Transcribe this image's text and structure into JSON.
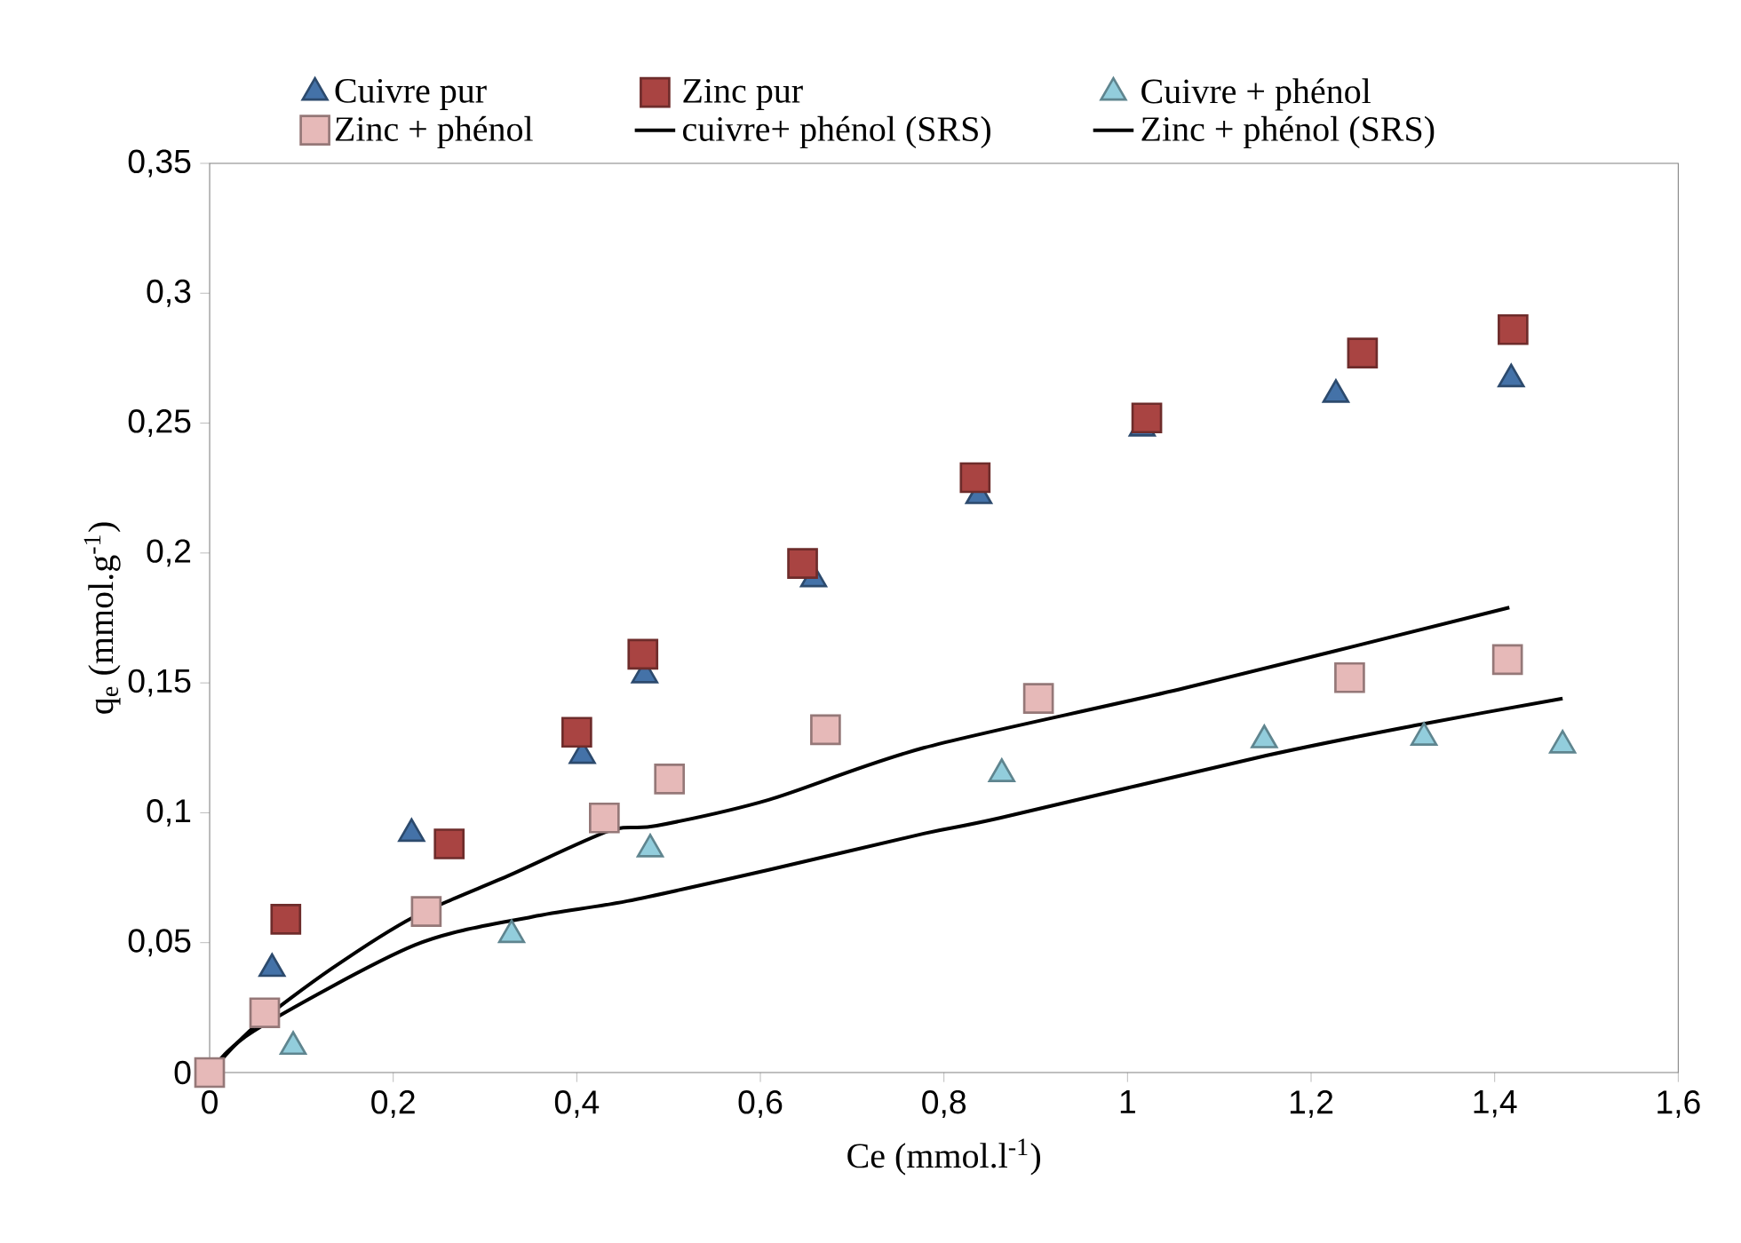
{
  "chart_data": {
    "type": "scatter",
    "xlabel": "Ce (mmol.l$^{-1}$)",
    "ylabel": "q$_{e}$ (mmol.g$^{-1}$)",
    "xlim": [
      0,
      1.6
    ],
    "ylim": [
      0,
      0.35
    ],
    "xticks": [
      0,
      {
        "value": 0.2,
        "label": "0,2"
      },
      {
        "value": 0.4,
        "label": "0,4"
      },
      {
        "value": 0.6,
        "label": "0,6"
      },
      {
        "value": 0.8,
        "label": "0,8"
      },
      1,
      {
        "value": 1.2,
        "label": "1,2"
      },
      {
        "value": 1.4,
        "label": "1,4"
      },
      {
        "value": 1.6,
        "label": "1,6"
      }
    ],
    "yticks": [
      0,
      {
        "value": 0.05,
        "label": "0,05"
      },
      {
        "value": 0.1,
        "label": "0,1"
      },
      {
        "value": 0.15,
        "label": "0,15"
      },
      {
        "value": 0.2,
        "label": "0,2"
      },
      {
        "value": 0.25,
        "label": "0,25"
      },
      {
        "value": 0.3,
        "label": "0,3"
      },
      {
        "value": 0.35,
        "label": "0,35"
      }
    ],
    "grid": false,
    "legend": "top",
    "series": [
      {
        "name": "Cuivre pur",
        "marker": "triangle",
        "color": "#4472a8",
        "x": [
          0.068,
          0.22,
          0.406,
          0.474,
          0.658,
          0.838,
          1.016,
          1.227,
          1.418
        ],
        "values": [
          0.04,
          0.092,
          0.122,
          0.153,
          0.19,
          0.222,
          0.248,
          0.261,
          0.267
        ]
      },
      {
        "name": "Zinc pur",
        "marker": "square",
        "color": "#a94442",
        "x": [
          0.083,
          0.261,
          0.4,
          0.472,
          0.646,
          0.834,
          1.021,
          1.256,
          1.42
        ],
        "values": [
          0.059,
          0.088,
          0.131,
          0.161,
          0.196,
          0.229,
          0.252,
          0.277,
          0.286
        ]
      },
      {
        "name": "Cuivre + phénol",
        "marker": "triangle",
        "color": "#92cddc",
        "x": [
          0.091,
          0.329,
          0.48,
          0.863,
          1.149,
          1.323,
          1.474
        ],
        "values": [
          0.01,
          0.053,
          0.086,
          0.115,
          0.128,
          0.129,
          0.126
        ]
      },
      {
        "name": "Zinc + phénol",
        "marker": "square",
        "color": "#e6b9b8",
        "x": [
          0,
          0.06,
          0.236,
          0.43,
          0.501,
          0.671,
          0.903,
          1.242,
          1.414
        ],
        "values": [
          0,
          0.023,
          0.062,
          0.098,
          0.113,
          0.132,
          0.144,
          0.152,
          0.159
        ]
      },
      {
        "name": "cuivre+ phénol (SRS)",
        "type": "line",
        "marker": "none",
        "line_style": "solid",
        "color": "#000000",
        "x": [
          0,
          0.048,
          0.223,
          0.352,
          0.455,
          0.609,
          0.778,
          0.861,
          1.151,
          1.319,
          1.474
        ],
        "values": [
          0,
          0.016,
          0.049,
          0.06,
          0.066,
          0.078,
          0.092,
          0.098,
          0.122,
          0.134,
          0.144
        ]
      },
      {
        "name": "Zinc + phénol (SRS)",
        "type": "line",
        "marker": "none",
        "line_style": "solid",
        "color": "#000000",
        "x": [
          0,
          0.05,
          0.133,
          0.223,
          0.327,
          0.435,
          0.487,
          0.609,
          0.778,
          1.062,
          1.416
        ],
        "values": [
          0,
          0.018,
          0.04,
          0.06,
          0.076,
          0.093,
          0.095,
          0.105,
          0.125,
          0.148,
          0.179
        ]
      }
    ]
  }
}
